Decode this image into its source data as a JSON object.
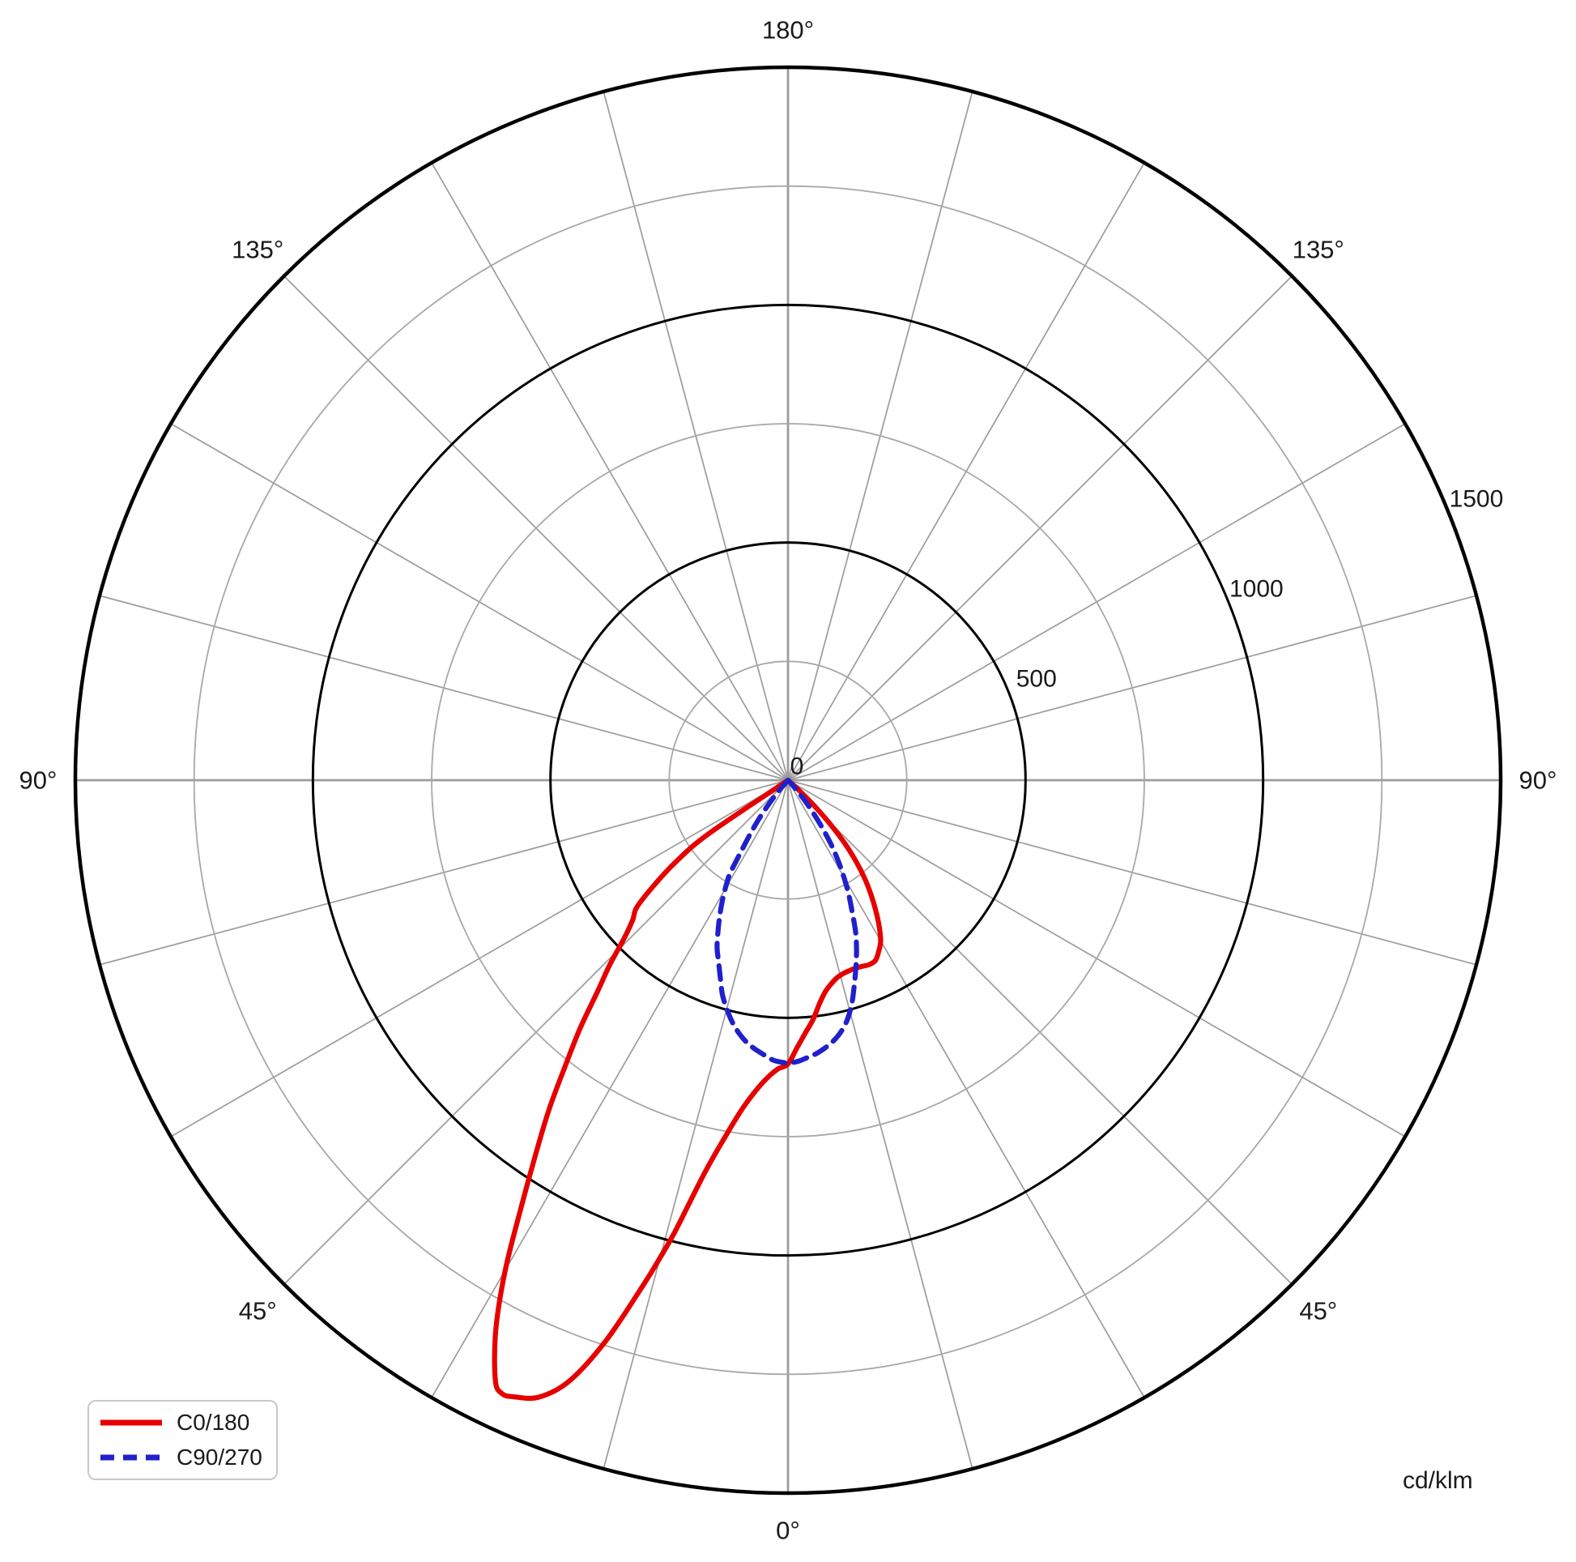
{
  "unit_label": "cd/klm",
  "legend": {
    "items": [
      {
        "label": "C0/180",
        "color": "#e60000",
        "line_style": "solid"
      },
      {
        "label": "C90/270",
        "color": "#2020cc",
        "line_style": "dashed"
      }
    ]
  },
  "chart_data": {
    "type": "line",
    "projection": "polar",
    "description": "Photometric luminous intensity distribution (polar curve), 0° at bottom, values in cd/klm",
    "unit_label": "cd/klm",
    "grid": true,
    "angle_axis": {
      "zero_direction": "down",
      "spoke_step_deg": 15,
      "labels": [
        {
          "gamma": 0,
          "label": "0°"
        },
        {
          "gamma": 45,
          "label": "45°"
        },
        {
          "gamma": 90,
          "label": "90°"
        },
        {
          "gamma": 135,
          "label": "135°"
        },
        {
          "gamma": 180,
          "label": "180°"
        },
        {
          "gamma": -45,
          "label": "45°"
        },
        {
          "gamma": -90,
          "label": "90°"
        },
        {
          "gamma": -135,
          "label": "135°"
        }
      ]
    },
    "r_axis": {
      "max": 1500,
      "major_ticks": [
        500,
        1000,
        1500
      ],
      "minor_ticks": [
        250,
        750,
        1250
      ],
      "tick_labels": [
        {
          "value": 0,
          "label": "0"
        },
        {
          "value": 500,
          "label": "500"
        },
        {
          "value": 1000,
          "label": "1000"
        },
        {
          "value": 1500,
          "label": "1500"
        }
      ]
    },
    "series": [
      {
        "name": "C0/180",
        "color": "#e60000",
        "line_style": "solid",
        "points": [
          [
            -58,
            0
          ],
          [
            -56,
            200
          ],
          [
            -54,
            290
          ],
          [
            -52,
            355
          ],
          [
            -50,
            415
          ],
          [
            -48,
            440
          ],
          [
            -46,
            480
          ],
          [
            -44,
            540
          ],
          [
            -42,
            600
          ],
          [
            -40,
            680
          ],
          [
            -38,
            760
          ],
          [
            -36,
            855
          ],
          [
            -34,
            950
          ],
          [
            -32,
            1060
          ],
          [
            -30,
            1190
          ],
          [
            -28,
            1310
          ],
          [
            -26,
            1405
          ],
          [
            -25,
            1424
          ],
          [
            -24,
            1420
          ],
          [
            -22,
            1400
          ],
          [
            -20,
            1345
          ],
          [
            -18,
            1240
          ],
          [
            -16,
            1105
          ],
          [
            -15,
            1040
          ],
          [
            -14,
            975
          ],
          [
            -12,
            845
          ],
          [
            -10,
            762
          ],
          [
            -8,
            700
          ],
          [
            -6,
            658
          ],
          [
            -4,
            628
          ],
          [
            -2,
            608
          ],
          [
            0,
            597
          ],
          [
            2,
            562
          ],
          [
            4,
            532
          ],
          [
            6,
            506
          ],
          [
            8,
            475
          ],
          [
            10,
            452
          ],
          [
            12,
            438
          ],
          [
            14,
            428
          ],
          [
            16,
            423
          ],
          [
            18,
            421
          ],
          [
            20,
            420
          ],
          [
            22,
            422
          ],
          [
            24,
            424
          ],
          [
            26,
            421
          ],
          [
            28,
            407
          ],
          [
            30,
            390
          ],
          [
            32,
            362
          ],
          [
            34,
            330
          ],
          [
            36,
            297
          ],
          [
            38,
            262
          ],
          [
            40,
            222
          ],
          [
            42,
            178
          ],
          [
            44,
            125
          ],
          [
            46,
            70
          ],
          [
            48,
            25
          ],
          [
            49,
            0
          ]
        ]
      },
      {
        "name": "C90/270",
        "color": "#2020cc",
        "line_style": "dashed",
        "points": [
          [
            -44,
            0
          ],
          [
            -41,
            30
          ],
          [
            -39,
            60
          ],
          [
            -37,
            100
          ],
          [
            -35,
            140
          ],
          [
            -33,
            190
          ],
          [
            -32,
            228
          ],
          [
            -31,
            248
          ],
          [
            -29,
            282
          ],
          [
            -27,
            315
          ],
          [
            -25,
            348
          ],
          [
            -23,
            382
          ],
          [
            -21,
            408
          ],
          [
            -19,
            438
          ],
          [
            -17,
            472
          ],
          [
            -15,
            498
          ],
          [
            -13,
            522
          ],
          [
            -11,
            542
          ],
          [
            -9,
            558
          ],
          [
            -7,
            570
          ],
          [
            -5,
            580
          ],
          [
            -3,
            590
          ],
          [
            -1,
            594
          ],
          [
            0,
            595
          ],
          [
            2,
            592
          ],
          [
            4,
            585
          ],
          [
            6,
            578
          ],
          [
            8,
            568
          ],
          [
            10,
            556
          ],
          [
            12,
            540
          ],
          [
            14,
            518
          ],
          [
            16,
            488
          ],
          [
            18,
            452
          ],
          [
            20,
            418
          ],
          [
            22,
            385
          ],
          [
            24,
            350
          ],
          [
            26,
            308
          ],
          [
            28,
            272
          ],
          [
            30,
            235
          ],
          [
            32,
            198
          ],
          [
            34,
            160
          ],
          [
            36,
            118
          ],
          [
            38,
            80
          ],
          [
            40,
            48
          ],
          [
            42,
            22
          ],
          [
            44,
            0
          ]
        ]
      }
    ]
  }
}
